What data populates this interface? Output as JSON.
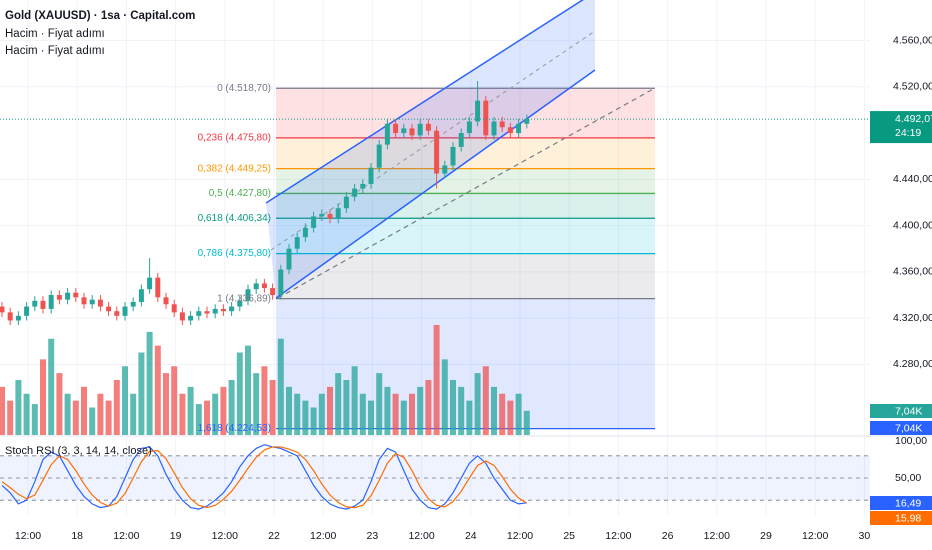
{
  "header": {
    "title": "Gold (XAUUSD) · 1sa · Capital.com",
    "indicators": [
      "Hacim · Fiyat adımı",
      "Hacim · Fiyat adımı"
    ]
  },
  "chart_data": {
    "type": "candlestick",
    "up_color": "#26a69a",
    "down_color": "#ef5350",
    "candles": [
      [
        4330,
        4334,
        4321,
        4325
      ],
      [
        4325,
        4329,
        4314,
        4318
      ],
      [
        4318,
        4326,
        4314,
        4322
      ],
      [
        4322,
        4334,
        4318,
        4330
      ],
      [
        4330,
        4339,
        4326,
        4335
      ],
      [
        4335,
        4339,
        4324,
        4328
      ],
      [
        4328,
        4344,
        4324,
        4340
      ],
      [
        4340,
        4344,
        4332,
        4336
      ],
      [
        4336,
        4346,
        4332,
        4342
      ],
      [
        4342,
        4346,
        4334,
        4338
      ],
      [
        4338,
        4342,
        4328,
        4332
      ],
      [
        4332,
        4340,
        4328,
        4336
      ],
      [
        4336,
        4340,
        4326,
        4330
      ],
      [
        4330,
        4334,
        4322,
        4326
      ],
      [
        4326,
        4330,
        4318,
        4322
      ],
      [
        4322,
        4334,
        4318,
        4330
      ],
      [
        4330,
        4338,
        4326,
        4334
      ],
      [
        4334,
        4349,
        4330,
        4345
      ],
      [
        4345,
        4372,
        4341,
        4355
      ],
      [
        4355,
        4359,
        4334,
        4338
      ],
      [
        4338,
        4342,
        4328,
        4332
      ],
      [
        4332,
        4336,
        4321,
        4325
      ],
      [
        4325,
        4329,
        4314,
        4318
      ],
      [
        4318,
        4326,
        4314,
        4322
      ],
      [
        4322,
        4330,
        4318,
        4326
      ],
      [
        4326,
        4330,
        4320,
        4324
      ],
      [
        4324,
        4332,
        4320,
        4328
      ],
      [
        4328,
        4332,
        4322,
        4326
      ],
      [
        4326,
        4334,
        4322,
        4330
      ],
      [
        4330,
        4339,
        4326,
        4335
      ],
      [
        4335,
        4349,
        4331,
        4345
      ],
      [
        4345,
        4354,
        4341,
        4350
      ],
      [
        4350,
        4354,
        4342,
        4346
      ],
      [
        4346,
        4350,
        4336,
        4340
      ],
      [
        4340,
        4366,
        4336,
        4362
      ],
      [
        4362,
        4384,
        4358,
        4380
      ],
      [
        4380,
        4394,
        4376,
        4390
      ],
      [
        4390,
        4402,
        4386,
        4398
      ],
      [
        4398,
        4412,
        4394,
        4408
      ],
      [
        4408,
        4414,
        4404,
        4410
      ],
      [
        4410,
        4414,
        4402,
        4406
      ],
      [
        4406,
        4419,
        4402,
        4415
      ],
      [
        4415,
        4429,
        4411,
        4425
      ],
      [
        4425,
        4436,
        4421,
        4432
      ],
      [
        4432,
        4440,
        4428,
        4436
      ],
      [
        4436,
        4454,
        4432,
        4450
      ],
      [
        4450,
        4474,
        4446,
        4470
      ],
      [
        4470,
        4492,
        4466,
        4488
      ],
      [
        4488,
        4492,
        4476,
        4480
      ],
      [
        4480,
        4488,
        4476,
        4484
      ],
      [
        4484,
        4488,
        4474,
        4478
      ],
      [
        4478,
        4492,
        4474,
        4488
      ],
      [
        4488,
        4492,
        4478,
        4482
      ],
      [
        4482,
        4486,
        4432,
        4445
      ],
      [
        4445,
        4456,
        4441,
        4452
      ],
      [
        4452,
        4472,
        4448,
        4468
      ],
      [
        4468,
        4484,
        4464,
        4480
      ],
      [
        4480,
        4494,
        4476,
        4490
      ],
      [
        4490,
        4525,
        4486,
        4508
      ],
      [
        4508,
        4512,
        4474,
        4478
      ],
      [
        4478,
        4494,
        4474,
        4490
      ],
      [
        4490,
        4494,
        4481,
        4485
      ],
      [
        4485,
        4489,
        4476,
        4480
      ],
      [
        4480,
        4492,
        4476,
        4488
      ],
      [
        4488,
        4496,
        4484,
        4492.07
      ]
    ],
    "ylim": [
      4219,
      4595
    ],
    "yticks": [
      {
        "value": 4280,
        "label": "4.280,00"
      },
      {
        "value": 4320,
        "label": "4.320,00"
      },
      {
        "value": 4360,
        "label": "4.360,00"
      },
      {
        "value": 4400,
        "label": "4.400,00"
      },
      {
        "value": 4440,
        "label": "4.440,00"
      },
      {
        "value": 4520,
        "label": "4.520,00"
      },
      {
        "value": 4560,
        "label": "4.560,00"
      }
    ],
    "grid": true,
    "last_price": {
      "value": 4492.07,
      "label": "4.492,07",
      "color": "#089981"
    },
    "countdown": "24:19",
    "xlabels": [
      "12:00",
      "18",
      "12:00",
      "19",
      "12:00",
      "22",
      "12:00",
      "23",
      "12:00",
      "24",
      "12:00",
      "25",
      "12:00",
      "26",
      "12:00",
      "29",
      "12:00",
      "30"
    ],
    "fib": [
      {
        "label": "0 (4.518,70)",
        "value": 4518.7,
        "color": "#787b86"
      },
      {
        "label": "0,236 (4.475,80)",
        "value": 4475.8,
        "color": "#f23645"
      },
      {
        "label": "0,382 (4.449,25)",
        "value": 4449.25,
        "color": "#ff9800"
      },
      {
        "label": "0,5 (4.427,80)",
        "value": 4427.8,
        "color": "#4caf50"
      },
      {
        "label": "0,618 (4.406,34)",
        "value": 4406.34,
        "color": "#089981"
      },
      {
        "label": "0,786 (4.375,80)",
        "value": 4375.8,
        "color": "#00bcd4"
      },
      {
        "label": "1 (4.336,89)",
        "value": 4336.89,
        "color": "#787b86"
      },
      {
        "label": "1,618 (4.224,53)",
        "value": 4224.53,
        "color": "#2962ff"
      }
    ],
    "volume": {
      "values": [
        14000,
        10000,
        16000,
        12000,
        9000,
        22000,
        28000,
        18000,
        12000,
        10000,
        14000,
        8000,
        12000,
        10000,
        16000,
        20000,
        12000,
        24000,
        30000,
        26000,
        18000,
        20000,
        12000,
        14000,
        9000,
        10000,
        12000,
        14000,
        16000,
        24000,
        26000,
        18000,
        20000,
        16000,
        28000,
        14000,
        12000,
        10000,
        8000,
        12000,
        14000,
        18000,
        16000,
        20000,
        12000,
        10000,
        18000,
        14000,
        12000,
        10000,
        12000,
        14000,
        16000,
        32000,
        22000,
        16000,
        14000,
        10000,
        18000,
        20000,
        14000,
        12000,
        10000,
        12000,
        7040
      ],
      "ylim": [
        0,
        32000
      ],
      "last_labels": [
        "7,04K",
        "7,04K"
      ],
      "label_colors": [
        "#26a69a",
        "#2962ff"
      ]
    },
    "stoch": {
      "title": "Stoch RSI (3, 3, 14, 14, close)",
      "ylim": [
        0,
        100
      ],
      "yticks": [
        {
          "value": 100,
          "label": "100,00"
        },
        {
          "value": 50,
          "label": "50,00"
        }
      ],
      "bands": [
        20,
        50,
        80
      ],
      "series": [
        {
          "color": "#2962ff",
          "last_label": "16,49",
          "values": [
            40,
            30,
            15,
            20,
            45,
            75,
            85,
            80,
            60,
            40,
            25,
            15,
            10,
            12,
            25,
            50,
            75,
            90,
            92,
            80,
            55,
            35,
            20,
            10,
            8,
            12,
            20,
            30,
            45,
            65,
            80,
            90,
            95,
            92,
            90,
            85,
            80,
            60,
            40,
            25,
            15,
            10,
            8,
            12,
            20,
            45,
            75,
            90,
            85,
            60,
            35,
            20,
            10,
            8,
            15,
            30,
            50,
            70,
            80,
            70,
            50,
            35,
            20,
            15,
            16.49
          ]
        },
        {
          "color": "#ff6d00",
          "last_label": "15,98",
          "values": [
            45,
            37,
            28,
            22,
            27,
            47,
            68,
            80,
            75,
            60,
            42,
            27,
            17,
            12,
            16,
            29,
            50,
            72,
            86,
            87,
            76,
            57,
            37,
            22,
            13,
            10,
            13,
            21,
            32,
            47,
            63,
            78,
            88,
            92,
            92,
            89,
            85,
            75,
            60,
            42,
            27,
            17,
            11,
            10,
            13,
            26,
            47,
            70,
            83,
            78,
            60,
            38,
            22,
            13,
            11,
            18,
            32,
            50,
            67,
            73,
            67,
            52,
            35,
            23,
            15.98
          ]
        }
      ]
    }
  }
}
